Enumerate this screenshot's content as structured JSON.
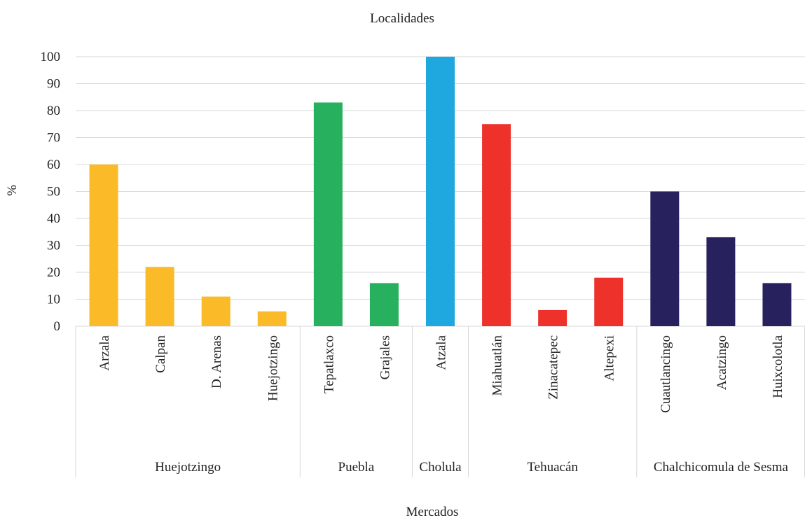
{
  "chart_data": {
    "type": "bar",
    "title": "Localidades",
    "xlabel": "Mercados",
    "ylabel": "%",
    "ylim": [
      0,
      100
    ],
    "yticks": [
      0,
      10,
      20,
      30,
      40,
      50,
      60,
      70,
      80,
      90,
      100
    ],
    "grid": true,
    "groups": [
      {
        "name": "Huejotzingo",
        "categories": [
          "Arzala",
          "Calpan",
          "D. Arenas",
          "Huejotzingo"
        ],
        "values": [
          60,
          22,
          11,
          5.5
        ]
      },
      {
        "name": "Puebla",
        "categories": [
          "Tepatlaxco",
          "Grajales"
        ],
        "values": [
          83,
          16
        ]
      },
      {
        "name": "Cholula",
        "categories": [
          "Atzala"
        ],
        "values": [
          100
        ]
      },
      {
        "name": "Tehuacán",
        "categories": [
          "Miahuatlán",
          "Zinacatepec",
          "Altepexi"
        ],
        "values": [
          75,
          6,
          18
        ]
      },
      {
        "name": "Chalchicomula de Sesma",
        "categories": [
          "Cuautlancingo",
          "Acatzingo",
          "Huixcolotla"
        ],
        "values": [
          50,
          33,
          16
        ]
      }
    ],
    "colors": {
      "Huejotzingo": "#fbba27",
      "Puebla": "#27b15e",
      "Cholula": "#1fa7e0",
      "Tehuacán": "#ee312b",
      "Chalchicomula de Sesma": "#27215d"
    },
    "gridline_color": "#d9d9d9"
  }
}
